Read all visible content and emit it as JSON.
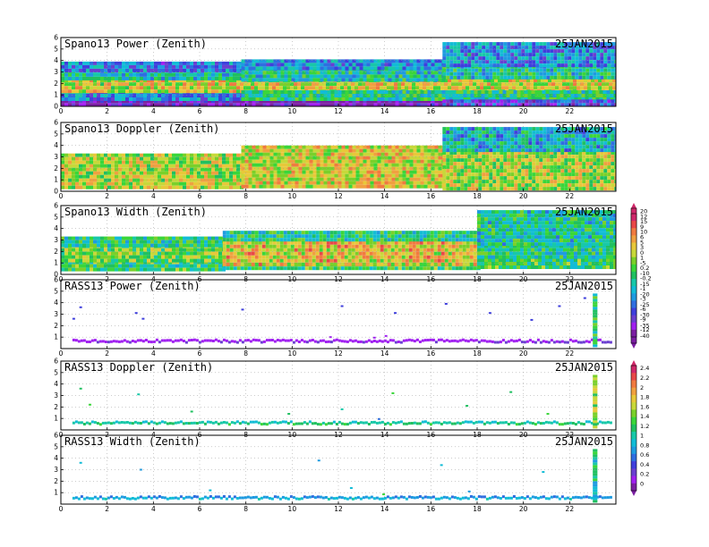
{
  "figure": {
    "date_label": "25JAN2015",
    "colors": {
      "palette": [
        "#7b1fa2",
        "#a020f0",
        "#6a3fd0",
        "#3f3fdc",
        "#2f6ee0",
        "#1e9be0",
        "#12bcd6",
        "#18c8a8",
        "#20c060",
        "#3ad63a",
        "#7ad02a",
        "#c8d83a",
        "#e8c83a",
        "#f0a040",
        "#f07a40",
        "#e84848",
        "#d0286a"
      ]
    }
  },
  "chart_data": [
    {
      "type": "heatmap",
      "title": "Spano13 Power (Zenith)",
      "date": "25JAN2015",
      "xlabel": "",
      "ylabel": "",
      "xlim": [
        0,
        24
      ],
      "ylim": [
        0,
        6
      ],
      "x_ticks": [
        0,
        2,
        4,
        6,
        8,
        10,
        12,
        14,
        16,
        18,
        20,
        22
      ],
      "y_ticks": [
        0,
        1,
        2,
        3,
        4,
        5,
        6
      ],
      "grid": true,
      "colorbar": {
        "labels": [
          "20",
          "15",
          "10",
          "5",
          "0",
          "-5",
          "-10",
          "-15",
          "-20",
          "-25",
          "-30",
          "-35",
          "-40"
        ]
      },
      "variable": "power",
      "cells": [
        {
          "x0": 0,
          "x1": 7.8,
          "y0": 0,
          "y1": 0.6,
          "value": -38
        },
        {
          "x0": 0,
          "x1": 7.8,
          "y0": 0.6,
          "y1": 1.4,
          "value": -22
        },
        {
          "x0": 0,
          "x1": 24,
          "y0": 1.4,
          "y1": 2.4,
          "value": 2
        },
        {
          "x0": 0,
          "x1": 7.8,
          "y0": 2.4,
          "y1": 3.2,
          "value": -15
        },
        {
          "x0": 0,
          "x1": 7.8,
          "y0": 3.2,
          "y1": 3.9,
          "value": -24
        },
        {
          "x0": 7.8,
          "x1": 16.5,
          "y0": 0,
          "y1": 0.6,
          "value": -40
        },
        {
          "x0": 7.8,
          "x1": 24,
          "y0": 0.6,
          "y1": 1.4,
          "value": -12
        },
        {
          "x0": 7.8,
          "x1": 16.5,
          "y0": 2.4,
          "y1": 3.4,
          "value": -14
        },
        {
          "x0": 7.8,
          "x1": 16.5,
          "y0": 3.4,
          "y1": 4.1,
          "value": -22
        },
        {
          "x0": 16.5,
          "x1": 24,
          "y0": 0,
          "y1": 0.6,
          "value": -30
        },
        {
          "x0": 16.5,
          "x1": 24,
          "y0": 2.4,
          "y1": 3.6,
          "value": -14
        },
        {
          "x0": 16.5,
          "x1": 24,
          "y0": 3.6,
          "y1": 5.6,
          "value": -22
        }
      ]
    },
    {
      "type": "heatmap",
      "title": "Spano13 Doppler (Zenith)",
      "date": "25JAN2015",
      "xlabel": "",
      "ylabel": "",
      "xlim": [
        0,
        24
      ],
      "ylim": [
        0,
        6
      ],
      "x_ticks": [
        0,
        2,
        4,
        6,
        8,
        10,
        12,
        14,
        16,
        18,
        20,
        22
      ],
      "y_ticks": [
        0,
        1,
        2,
        3,
        4,
        5,
        6
      ],
      "grid": true,
      "variable": "doppler",
      "cells": [
        {
          "x0": 0,
          "x1": 7.8,
          "y0": 0.4,
          "y1": 3.3,
          "value": 0.4
        },
        {
          "x0": 7.8,
          "x1": 16.5,
          "y0": 0.3,
          "y1": 4.0,
          "value": 0.5
        },
        {
          "x0": 16.5,
          "x1": 24,
          "y0": 0.3,
          "y1": 3.5,
          "value": 0.4
        },
        {
          "x0": 16.5,
          "x1": 24,
          "y0": 3.5,
          "y1": 5.6,
          "value": -0.3
        }
      ]
    },
    {
      "type": "heatmap",
      "title": "Spano13 Width (Zenith)",
      "date": "25JAN2015",
      "xlabel": "",
      "ylabel": "",
      "xlim": [
        0,
        24
      ],
      "ylim": [
        0,
        6
      ],
      "x_ticks": [
        0,
        2,
        4,
        6,
        8,
        10,
        12,
        14,
        16,
        18,
        20,
        22
      ],
      "y_ticks": [
        0,
        1,
        2,
        3,
        4,
        5,
        6
      ],
      "grid": true,
      "colorbar": {
        "labels": [
          "12",
          "9",
          "6",
          "3",
          "1",
          "0.2",
          "-0.2",
          "-1",
          "-3",
          "-6",
          "-9",
          "-12"
        ]
      },
      "variable": "width",
      "cells": [
        {
          "x0": 0,
          "x1": 7,
          "y0": 0.5,
          "y1": 1.2,
          "value": 0.4
        },
        {
          "x0": 0,
          "x1": 7,
          "y0": 1.2,
          "y1": 2.6,
          "value": 2.5
        },
        {
          "x0": 0,
          "x1": 7,
          "y0": 2.6,
          "y1": 3.3,
          "value": -0.5
        },
        {
          "x0": 7,
          "x1": 18,
          "y0": 0.5,
          "y1": 1.0,
          "value": 0.5
        },
        {
          "x0": 7,
          "x1": 18,
          "y0": 1.0,
          "y1": 2.9,
          "value": 6
        },
        {
          "x0": 7,
          "x1": 18,
          "y0": 2.9,
          "y1": 3.8,
          "value": -0.6
        },
        {
          "x0": 18,
          "x1": 24,
          "y0": 0.5,
          "y1": 1.4,
          "value": 0.3
        },
        {
          "x0": 18,
          "x1": 24,
          "y0": 1.4,
          "y1": 2.6,
          "value": -0.8
        },
        {
          "x0": 18,
          "x1": 24,
          "y0": 2.6,
          "y1": 5.6,
          "value": -1.5
        }
      ]
    },
    {
      "type": "scatter",
      "title": "RASS13 Power (Zenith)",
      "date": "25JAN2015",
      "xlabel": "",
      "ylabel": "",
      "xlim": [
        0,
        24
      ],
      "ylim": [
        0,
        6
      ],
      "x_ticks": [
        0,
        2,
        4,
        6,
        8,
        10,
        12,
        14,
        16,
        18,
        20,
        22
      ],
      "y_ticks": [
        1,
        2,
        3,
        4,
        5,
        6
      ],
      "grid": true,
      "variable": "rass_power",
      "band": {
        "x0": 0.5,
        "x1": 23.8,
        "y": 0.65,
        "value": -11
      },
      "points": [
        {
          "x": 0.5,
          "y": 2.6,
          "value": -10
        },
        {
          "x": 0.8,
          "y": 3.6,
          "value": -10
        },
        {
          "x": 3.2,
          "y": 3.1,
          "value": -10
        },
        {
          "x": 3.5,
          "y": 2.6,
          "value": -10
        },
        {
          "x": 7.8,
          "y": 3.4,
          "value": -10
        },
        {
          "x": 12.1,
          "y": 3.7,
          "value": -10
        },
        {
          "x": 14.4,
          "y": 3.1,
          "value": -10
        },
        {
          "x": 16.6,
          "y": 3.9,
          "value": -10
        },
        {
          "x": 18.5,
          "y": 3.1,
          "value": -10
        },
        {
          "x": 20.3,
          "y": 2.5,
          "value": -10
        },
        {
          "x": 21.5,
          "y": 3.7,
          "value": -10
        },
        {
          "x": 22.6,
          "y": 4.4,
          "value": -10
        },
        {
          "x": 13.5,
          "y": 0.95,
          "value": -11
        },
        {
          "x": 14.0,
          "y": 1.1,
          "value": -11
        },
        {
          "x": 11.6,
          "y": 1.0,
          "value": -11
        }
      ],
      "column": {
        "x0": 23.0,
        "x1": 23.2,
        "y0": 0.2,
        "y1": 4.8,
        "value": -6
      }
    },
    {
      "type": "scatter",
      "title": "RASS13 Doppler (Zenith)",
      "date": "25JAN2015",
      "xlabel": "",
      "ylabel": "",
      "xlim": [
        0,
        24
      ],
      "ylim": [
        0,
        6
      ],
      "x_ticks": [
        0,
        2,
        4,
        6,
        8,
        10,
        12,
        14,
        16,
        18,
        20,
        22
      ],
      "y_ticks": [
        1,
        2,
        3,
        4,
        5,
        6
      ],
      "grid": true,
      "colorbar": {
        "labels": [
          "2.4",
          "2.2",
          "2",
          "1.8",
          "1.6",
          "1.4",
          "1.2",
          "1",
          "0.8",
          "0.6",
          "0.4",
          "0.2",
          "0"
        ]
      },
      "variable": "rass_doppler",
      "band": {
        "x0": 0.5,
        "x1": 23.8,
        "y": 0.6,
        "value": 1.1
      },
      "points": [
        {
          "x": 0.8,
          "y": 3.6,
          "value": 1.2
        },
        {
          "x": 1.2,
          "y": 2.2,
          "value": 1.4
        },
        {
          "x": 3.3,
          "y": 3.1,
          "value": 1.1
        },
        {
          "x": 5.6,
          "y": 1.6,
          "value": 1.2
        },
        {
          "x": 9.8,
          "y": 1.4,
          "value": 1.2
        },
        {
          "x": 12.1,
          "y": 1.8,
          "value": 1.1
        },
        {
          "x": 14.3,
          "y": 3.2,
          "value": 1.3
        },
        {
          "x": 17.5,
          "y": 2.1,
          "value": 1.2
        },
        {
          "x": 19.4,
          "y": 3.3,
          "value": 1.2
        },
        {
          "x": 21.0,
          "y": 1.4,
          "value": 1.3
        },
        {
          "x": 13.7,
          "y": 0.95,
          "value": 0.6
        }
      ],
      "column": {
        "x0": 23.0,
        "x1": 23.2,
        "y0": 0.2,
        "y1": 4.8,
        "value": 1.6
      }
    },
    {
      "type": "scatter",
      "title": "RASS13 Width (Zenith)",
      "date": "25JAN2015",
      "xlabel": "",
      "ylabel": "",
      "xlim": [
        0,
        24
      ],
      "ylim": [
        0,
        6
      ],
      "x_ticks": [
        0,
        2,
        4,
        6,
        8,
        10,
        12,
        14,
        16,
        18,
        20,
        22
      ],
      "y_ticks": [
        1,
        2,
        3,
        4,
        5,
        6
      ],
      "grid": true,
      "variable": "rass_width",
      "band": {
        "x0": 0.5,
        "x1": 23.8,
        "y": 0.55,
        "value": 0.8
      },
      "points": [
        {
          "x": 0.8,
          "y": 3.6,
          "value": 0.9
        },
        {
          "x": 3.4,
          "y": 3.0,
          "value": 0.8
        },
        {
          "x": 6.4,
          "y": 1.2,
          "value": 0.9
        },
        {
          "x": 11.1,
          "y": 3.8,
          "value": 0.8
        },
        {
          "x": 12.5,
          "y": 1.4,
          "value": 0.9
        },
        {
          "x": 16.4,
          "y": 3.4,
          "value": 0.9
        },
        {
          "x": 17.6,
          "y": 1.1,
          "value": 0.8
        },
        {
          "x": 20.8,
          "y": 2.8,
          "value": 0.9
        },
        {
          "x": 13.9,
          "y": 0.85,
          "value": 1.4
        }
      ],
      "column": {
        "x0": 23.0,
        "x1": 23.2,
        "y0": 0.2,
        "y1": 4.8,
        "value": 1.0
      }
    }
  ]
}
